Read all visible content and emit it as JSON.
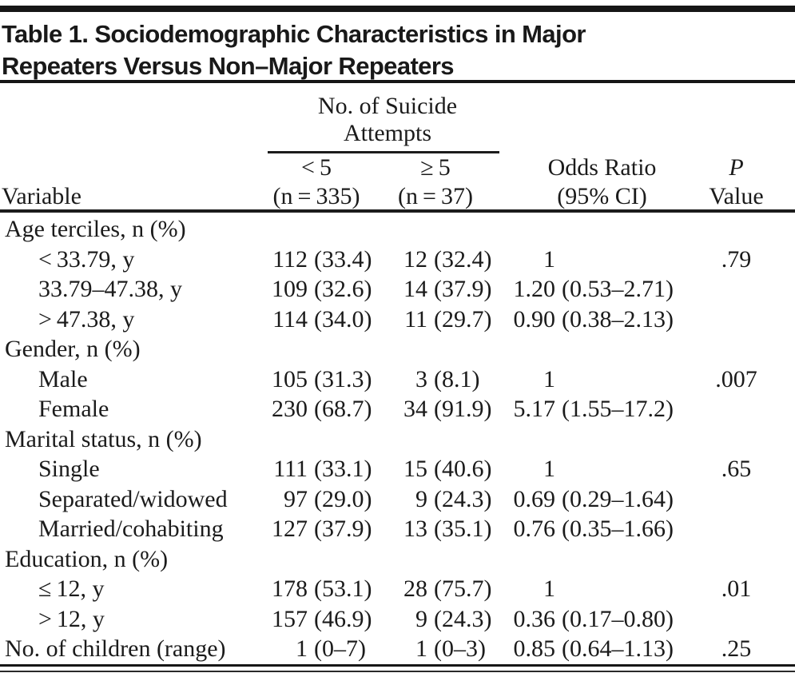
{
  "title": {
    "line1": "Table 1. Sociodemographic Characteristics in Major",
    "line2": "Repeaters Versus Non–Major Repeaters"
  },
  "table": {
    "spanner": {
      "line1": "No. of Suicide",
      "line2": "Attempts"
    },
    "header": {
      "variable": "Variable",
      "lt5_line1": "< 5",
      "lt5_line2": "(n = 335)",
      "ge5_line1": "≥ 5",
      "ge5_line2": "(n = 37)",
      "or_line1": "Odds Ratio",
      "or_line2": "(95% CI)",
      "p_line1": "P",
      "p_line2": "Value"
    },
    "rows": [
      {
        "label": "Age terciles, n (%)",
        "section": true
      },
      {
        "label": "< 33.79, y",
        "indent": true,
        "c1": {
          "n": "112",
          "p": "(33.4)"
        },
        "c2": {
          "n": "12",
          "p": "(32.4)"
        },
        "or": {
          "n": "1",
          "p": ""
        },
        "p": ".79"
      },
      {
        "label": "33.79–47.38, y",
        "indent": true,
        "c1": {
          "n": "109",
          "p": "(32.6)"
        },
        "c2": {
          "n": "14",
          "p": "(37.9)"
        },
        "or": {
          "n": "1.20",
          "p": "(0.53–2.71)"
        },
        "p": ""
      },
      {
        "label": "> 47.38, y",
        "indent": true,
        "c1": {
          "n": "114",
          "p": "(34.0)"
        },
        "c2": {
          "n": "11",
          "p": "(29.7)"
        },
        "or": {
          "n": "0.90",
          "p": "(0.38–2.13)"
        },
        "p": ""
      },
      {
        "label": "Gender, n (%)",
        "section": true
      },
      {
        "label": "Male",
        "indent": true,
        "c1": {
          "n": "105",
          "p": "(31.3)"
        },
        "c2": {
          "n": "3",
          "p": "(8.1)"
        },
        "or": {
          "n": "1",
          "p": ""
        },
        "p": ".007"
      },
      {
        "label": "Female",
        "indent": true,
        "c1": {
          "n": "230",
          "p": "(68.7)"
        },
        "c2": {
          "n": "34",
          "p": "(91.9)"
        },
        "or": {
          "n": "5.17",
          "p": "(1.55–17.2)"
        },
        "p": ""
      },
      {
        "label": "Marital status, n (%)",
        "section": true
      },
      {
        "label": "Single",
        "indent": true,
        "c1": {
          "n": "111",
          "p": "(33.1)"
        },
        "c2": {
          "n": "15",
          "p": "(40.6)"
        },
        "or": {
          "n": "1",
          "p": ""
        },
        "p": ".65"
      },
      {
        "label": "Separated/widowed",
        "indent": true,
        "c1": {
          "n": "97",
          "p": "(29.0)"
        },
        "c2": {
          "n": "9",
          "p": "(24.3)"
        },
        "or": {
          "n": "0.69",
          "p": "(0.29–1.64)"
        },
        "p": ""
      },
      {
        "label": "Married/cohabiting",
        "indent": true,
        "c1": {
          "n": "127",
          "p": "(37.9)"
        },
        "c2": {
          "n": "13",
          "p": "(35.1)"
        },
        "or": {
          "n": "0.76",
          "p": "(0.35–1.66)"
        },
        "p": ""
      },
      {
        "label": "Education, n (%)",
        "section": true
      },
      {
        "label": "≤ 12, y",
        "indent": true,
        "c1": {
          "n": "178",
          "p": "(53.1)"
        },
        "c2": {
          "n": "28",
          "p": "(75.7)"
        },
        "or": {
          "n": "1",
          "p": ""
        },
        "p": ".01"
      },
      {
        "label": "> 12, y",
        "indent": true,
        "c1": {
          "n": "157",
          "p": "(46.9)"
        },
        "c2": {
          "n": "9",
          "p": "(24.3)"
        },
        "or": {
          "n": "0.36",
          "p": "(0.17–0.80)"
        },
        "p": ""
      },
      {
        "label": "No. of children (range)",
        "c1": {
          "n": "1",
          "p": "(0–7)"
        },
        "c2": {
          "n": "1",
          "p": "(0–3)"
        },
        "or": {
          "n": "0.85",
          "p": "(0.64–1.13)"
        },
        "p": ".25"
      }
    ]
  }
}
